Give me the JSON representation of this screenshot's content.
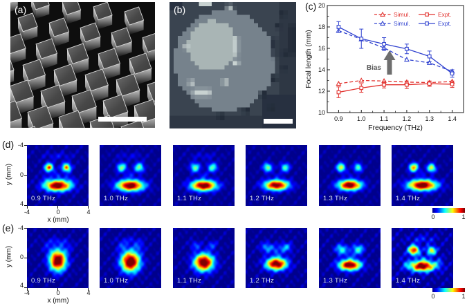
{
  "panel_a": {
    "label": "(a)"
  },
  "panel_b": {
    "label": "(b)"
  },
  "panel_c": {
    "label": "(c)"
  },
  "panel_d": {
    "label": "(d)",
    "xlabel": "x (mm)",
    "ylabel": "y (mm)",
    "x_ticks": [
      "-4",
      "0",
      "4"
    ],
    "y_ticks": [
      "-4",
      "0",
      "4"
    ],
    "colorbar_min": "0",
    "colorbar_max": "1"
  },
  "panel_e": {
    "label": "(e)",
    "xlabel": "x (mm)",
    "ylabel": "y (mm)",
    "x_ticks": [
      "-4",
      "0",
      "4"
    ],
    "y_ticks": [
      "-4",
      "0",
      "4"
    ],
    "colorbar_min": "0",
    "colorbar_max": "1"
  },
  "chart_data": [
    {
      "id": "focal-length-vs-frequency",
      "type": "line",
      "xlabel": "Frequency (THz)",
      "ylabel": "Focal length (mm)",
      "xlim": [
        0.85,
        1.45
      ],
      "ylim": [
        10,
        20
      ],
      "xtick_values": [
        0.9,
        1.0,
        1.1,
        1.2,
        1.3,
        1.4
      ],
      "xtick_labels": [
        "0.9",
        "1.0",
        "1.1",
        "1.2",
        "1.3",
        "1.4"
      ],
      "ytick_values": [
        10,
        12,
        14,
        16,
        18,
        20
      ],
      "ytick_labels": [
        "10",
        "12",
        "14",
        "16",
        "18",
        "20"
      ],
      "x": [
        0.9,
        1.0,
        1.1,
        1.2,
        1.3,
        1.4
      ],
      "series": [
        {
          "name": "Simul.",
          "color": "#E2312D",
          "line": "dashed",
          "marker": "triangle",
          "values": [
            12.7,
            13.0,
            12.95,
            12.85,
            12.8,
            12.9
          ]
        },
        {
          "name": "Expt.",
          "color": "#E2312D",
          "line": "solid",
          "marker": "square",
          "values": [
            11.9,
            12.3,
            12.6,
            12.6,
            12.7,
            12.65
          ],
          "errors": [
            0.5,
            0.4,
            0.3,
            0.35,
            0.25,
            0.3
          ]
        },
        {
          "name": "Simul.",
          "color": "#3143D0",
          "line": "dashed",
          "marker": "triangle",
          "values": [
            17.65,
            16.85,
            16.05,
            14.95,
            14.65,
            13.85
          ]
        },
        {
          "name": "Expt.",
          "color": "#3143D0",
          "line": "solid",
          "marker": "square",
          "values": [
            18.0,
            16.9,
            16.4,
            15.95,
            15.25,
            13.65
          ],
          "errors": [
            0.5,
            0.9,
            0.6,
            0.45,
            0.5,
            0.35
          ]
        }
      ],
      "legend_rows": [
        [
          0,
          1
        ],
        [
          2,
          3
        ]
      ],
      "annotation": {
        "text": "Bias",
        "color": "#595959",
        "arrow_color": "#6e6e6e"
      }
    },
    {
      "id": "measured-focal-plane-intensity-row-d",
      "type": "heatmap",
      "colormap": "jet",
      "xlabel": "x (mm)",
      "ylabel": "y (mm)",
      "xlim": [
        -4,
        4
      ],
      "ylim": [
        -4,
        4
      ],
      "colorbar": [
        0,
        1
      ],
      "panels": [
        {
          "label": "0.9 THz",
          "noise": 0.05,
          "blobs": [
            [
              -1.15,
              -1.05,
              0.42,
              0.42,
              0.7
            ],
            [
              1.15,
              -1.05,
              0.42,
              0.42,
              0.68
            ],
            [
              -1.15,
              -1.05,
              0.16,
              0.16,
              0.2
            ],
            [
              1.15,
              -1.05,
              0.16,
              0.16,
              0.15
            ],
            [
              0,
              1.35,
              1.2,
              0.52,
              1.1
            ],
            [
              0,
              -0.05,
              0.35,
              0.3,
              0.15
            ],
            [
              0,
              -2.6,
              1.4,
              0.35,
              0.1
            ],
            [
              -1.6,
              0.35,
              0.4,
              0.4,
              0.1
            ],
            [
              1.6,
              0.35,
              0.4,
              0.4,
              0.1
            ]
          ]
        },
        {
          "label": "1.0 THz",
          "noise": 0.04,
          "blobs": [
            [
              -1.15,
              -1.05,
              0.45,
              0.45,
              0.5
            ],
            [
              1.15,
              -1.05,
              0.45,
              0.45,
              0.5
            ],
            [
              0,
              1.35,
              1.2,
              0.52,
              1.08
            ],
            [
              0,
              -0.05,
              0.35,
              0.3,
              0.13
            ],
            [
              0,
              -2.6,
              1.4,
              0.35,
              0.08
            ]
          ]
        },
        {
          "label": "1.1 THz",
          "noise": 0.04,
          "blobs": [
            [
              -1.15,
              -1.05,
              0.45,
              0.45,
              0.48
            ],
            [
              1.15,
              -1.05,
              0.45,
              0.45,
              0.45
            ],
            [
              0,
              1.35,
              1.15,
              0.5,
              1.08
            ],
            [
              0,
              -0.05,
              0.35,
              0.3,
              0.12
            ],
            [
              0,
              -2.6,
              1.4,
              0.35,
              0.08
            ]
          ]
        },
        {
          "label": "1.2 THz",
          "noise": 0.04,
          "blobs": [
            [
              -1.15,
              -1.05,
              0.42,
              0.42,
              0.52
            ],
            [
              1.15,
              -1.05,
              0.42,
              0.42,
              0.45
            ],
            [
              0,
              1.3,
              1.1,
              0.48,
              1.05
            ],
            [
              0,
              -0.1,
              0.3,
              0.3,
              0.1
            ]
          ]
        },
        {
          "label": "1.3 THz",
          "noise": 0.04,
          "blobs": [
            [
              -1.15,
              -1.05,
              0.4,
              0.42,
              0.62
            ],
            [
              1.1,
              -1.05,
              0.38,
              0.4,
              0.48
            ],
            [
              0,
              1.3,
              1.05,
              0.48,
              1.08
            ],
            [
              0,
              -0.1,
              0.3,
              0.3,
              0.1
            ]
          ]
        },
        {
          "label": "1.4 THz",
          "noise": 0.045,
          "blobs": [
            [
              -1.15,
              -1.05,
              0.42,
              0.42,
              0.72
            ],
            [
              1.2,
              -1.0,
              0.4,
              0.4,
              0.62
            ],
            [
              0,
              1.3,
              1.3,
              0.5,
              1.1
            ],
            [
              0,
              -0.1,
              0.3,
              0.3,
              0.1
            ]
          ]
        }
      ]
    },
    {
      "id": "measured-focal-plane-intensity-row-e",
      "type": "heatmap",
      "colormap": "jet",
      "xlabel": "x (mm)",
      "ylabel": "y (mm)",
      "xlim": [
        -4,
        4
      ],
      "ylim": [
        -4,
        4
      ],
      "colorbar": [
        0,
        1
      ],
      "panels": [
        {
          "label": "0.9 THz",
          "noise": 0.05,
          "blobs": [
            [
              0,
              0.35,
              0.75,
              0.95,
              1.15
            ],
            [
              0,
              -2.2,
              1.3,
              0.4,
              0.12
            ],
            [
              -1.3,
              -1.3,
              0.5,
              0.5,
              0.1
            ],
            [
              1.3,
              -1.3,
              0.5,
              0.5,
              0.1
            ]
          ]
        },
        {
          "label": "1.0 THz",
          "noise": 0.05,
          "blobs": [
            [
              0,
              0.5,
              0.85,
              0.95,
              1.15
            ],
            [
              -1.1,
              -1.6,
              0.55,
              0.45,
              0.15
            ],
            [
              1.1,
              -1.6,
              0.55,
              0.45,
              0.15
            ],
            [
              0,
              -2.4,
              1.2,
              0.35,
              0.1
            ]
          ]
        },
        {
          "label": "1.1 THz",
          "noise": 0.05,
          "blobs": [
            [
              0,
              0.6,
              0.88,
              0.8,
              1.12
            ],
            [
              -1.1,
              -1.7,
              0.5,
              0.45,
              0.18
            ],
            [
              1.1,
              -1.7,
              0.5,
              0.45,
              0.18
            ]
          ]
        },
        {
          "label": "1.2 THz",
          "noise": 0.055,
          "blobs": [
            [
              0,
              0.8,
              0.95,
              0.58,
              1.08
            ],
            [
              -1.2,
              -1.4,
              0.6,
              0.5,
              0.3
            ],
            [
              1.2,
              -1.4,
              0.6,
              0.5,
              0.3
            ],
            [
              0,
              -0.9,
              0.35,
              0.45,
              0.15
            ]
          ]
        },
        {
          "label": "1.3 THz",
          "noise": 0.055,
          "blobs": [
            [
              0,
              0.95,
              1.0,
              0.5,
              1.08
            ],
            [
              -1.1,
              -1.15,
              0.55,
              0.5,
              0.42
            ],
            [
              1.1,
              -1.15,
              0.55,
              0.5,
              0.42
            ],
            [
              0,
              -0.35,
              0.3,
              0.4,
              0.15
            ]
          ]
        },
        {
          "label": "1.4 THz",
          "noise": 0.08,
          "blobs": [
            [
              0,
              1.1,
              1.15,
              0.5,
              1.08
            ],
            [
              -1.15,
              -1.05,
              0.5,
              0.45,
              0.92
            ],
            [
              1.2,
              -1.0,
              0.45,
              0.42,
              0.62
            ],
            [
              0,
              0,
              0.35,
              0.35,
              0.2
            ],
            [
              0,
              -2.5,
              1.3,
              0.4,
              0.14
            ],
            [
              -2.2,
              0.6,
              0.45,
              0.6,
              0.12
            ],
            [
              2.2,
              0.6,
              0.45,
              0.6,
              0.12
            ]
          ]
        }
      ]
    }
  ]
}
